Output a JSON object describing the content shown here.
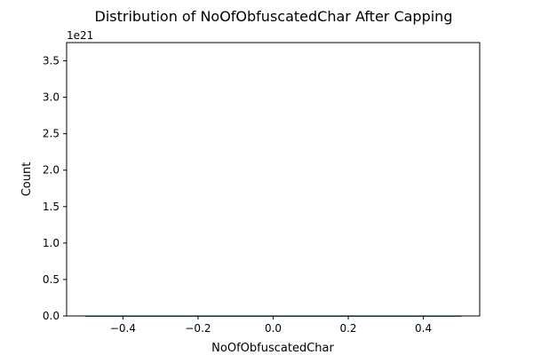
{
  "chart_data": {
    "type": "bar",
    "title": "Distribution of NoOfObfuscatedChar After Capping",
    "xlabel": "NoOfObfuscatedChar",
    "ylabel": "Count",
    "y_offset_text": "1e21",
    "x_range": [
      -0.55,
      0.55
    ],
    "y_range": [
      0,
      3.75
    ],
    "x_ticks": [
      -0.4,
      -0.2,
      0.0,
      0.2,
      0.4
    ],
    "x_tick_labels": [
      "−0.4",
      "−0.2",
      "0.0",
      "0.2",
      "0.4"
    ],
    "y_ticks": [
      0.0,
      0.5,
      1.0,
      1.5,
      2.0,
      2.5,
      3.0,
      3.5
    ],
    "y_tick_labels": [
      "0.0",
      "0.5",
      "1.0",
      "1.5",
      "2.0",
      "2.5",
      "3.0",
      "3.5"
    ],
    "bars": [
      {
        "x_start": -0.5,
        "x_end": 0.5,
        "value": 0
      }
    ],
    "grid": false,
    "colors": {
      "axis": "#000000",
      "bar": "#1f77b4",
      "background": "#ffffff"
    }
  }
}
